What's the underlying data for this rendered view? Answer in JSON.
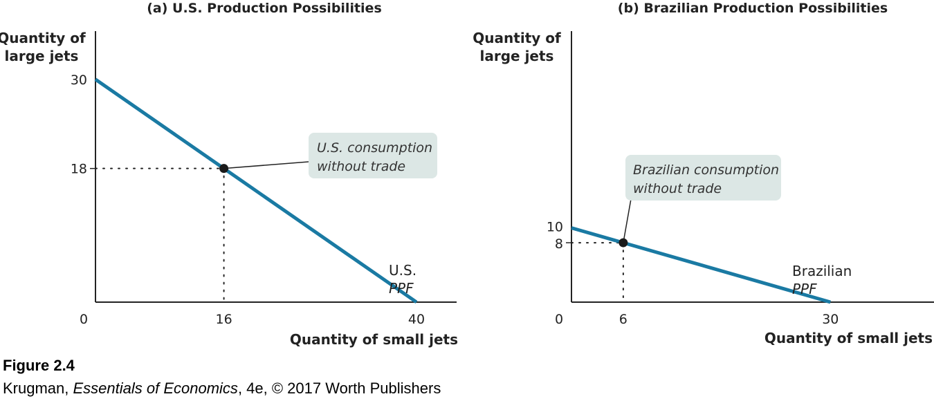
{
  "chart_data": [
    {
      "type": "line",
      "panel_title": "(a) U.S. Production Possibilities",
      "ylabel": [
        "Quantity of",
        "large jets"
      ],
      "xlabel": "Quantity of small jets",
      "origin_label": "0",
      "xlim": [
        0,
        45
      ],
      "ylim": [
        0,
        36.5
      ],
      "x_ticks": [
        16,
        40
      ],
      "y_ticks": [
        30,
        18
      ],
      "series": [
        {
          "name_lines": [
            "U.S.",
            "PPF"
          ],
          "points": [
            [
              0,
              30
            ],
            [
              40,
              0
            ]
          ],
          "color": "#1a7aa3"
        }
      ],
      "point": {
        "x": 16,
        "y": 18
      },
      "annotation": [
        "U.S. consumption",
        "without trade"
      ]
    },
    {
      "type": "line",
      "panel_title": "(b) Brazilian Production Possibilities",
      "ylabel": [
        "Quantity of",
        "large jets"
      ],
      "xlabel": "Quantity of small jets",
      "origin_label": "0",
      "xlim": [
        0,
        42
      ],
      "ylim": [
        0,
        36.5
      ],
      "x_ticks": [
        6,
        30
      ],
      "y_ticks": [
        10,
        8
      ],
      "series": [
        {
          "name_lines": [
            "Brazilian",
            "PPF"
          ],
          "points": [
            [
              0,
              10
            ],
            [
              30,
              0
            ]
          ],
          "color": "#1a7aa3"
        }
      ],
      "point": {
        "x": 6,
        "y": 8
      },
      "annotation": [
        "Brazilian consumption",
        "without trade"
      ]
    }
  ],
  "caption": {
    "figure_number": "Figure 2.4",
    "credit_author": "Krugman, ",
    "credit_book": "Essentials of Economics",
    "credit_rest": ", 4e, © 2017 Worth Publishers"
  },
  "colors": {
    "ppf_line": "#1a7aa3",
    "callout_fill": "#dce7e5",
    "point": "#1a1a1a",
    "axis": "#222222"
  }
}
